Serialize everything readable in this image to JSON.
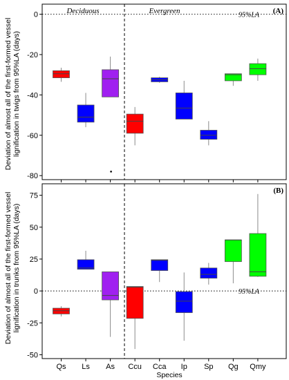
{
  "chart_data": [
    {
      "type": "box",
      "panel_label": "(A)",
      "ylabel": "Deviation of almost all of the first-formed vessel lignification in twigs from 95%LA (days)",
      "ylim": [
        -82,
        5
      ],
      "yticks": [
        0,
        -20,
        -40,
        -60,
        -80
      ],
      "group_labels": [
        "Deciduous",
        "Evergreen"
      ],
      "reference_line": {
        "y": 0,
        "label": "95%LA"
      },
      "categories": [
        "Qs",
        "Ls",
        "As",
        "Ccu",
        "Cca",
        "Ip",
        "Sp",
        "Qg",
        "Qmy"
      ],
      "colors": [
        "#ff0000",
        "#0000ff",
        "#a020f0",
        "#ff0000",
        "#0000ff",
        "#0000ff",
        "#0000ff",
        "#00ff00",
        "#00ff00"
      ],
      "boxes": [
        {
          "whisker_low": -33.5,
          "q1": -31.5,
          "median": -29.5,
          "q3": -28,
          "whisker_high": -26.5,
          "outliers": []
        },
        {
          "whisker_low": -56,
          "q1": -53.5,
          "median": -51,
          "q3": -45,
          "whisker_high": -39,
          "outliers": []
        },
        {
          "whisker_low": -41,
          "q1": -41,
          "median": -32,
          "q3": -27.5,
          "whisker_high": -21,
          "outliers": [
            -78
          ]
        },
        {
          "whisker_low": -65,
          "q1": -59,
          "median": -53,
          "q3": -49.5,
          "whisker_high": -46,
          "outliers": []
        },
        {
          "whisker_low": -34,
          "q1": -33.5,
          "median": -32.5,
          "q3": -31.5,
          "whisker_high": -31,
          "outliers": []
        },
        {
          "whisker_low": -52,
          "q1": -52,
          "median": -46.5,
          "q3": -39,
          "whisker_high": -33,
          "outliers": []
        },
        {
          "whisker_low": -65,
          "q1": -62,
          "median": -60,
          "q3": -57.5,
          "whisker_high": -53,
          "outliers": []
        },
        {
          "whisker_low": -35.5,
          "q1": -33,
          "median": -30,
          "q3": -29.5,
          "whisker_high": -29.5,
          "outliers": []
        },
        {
          "whisker_low": -33,
          "q1": -30,
          "median": -27,
          "q3": -24.5,
          "whisker_high": -22,
          "outliers": []
        }
      ]
    },
    {
      "type": "box",
      "panel_label": "(B)",
      "ylabel": "Deviation of almost all of the first-formed vessel lignification in trunks from 95%LA (days)",
      "xlabel": "Species",
      "ylim": [
        -53,
        84
      ],
      "yticks": [
        75,
        50,
        25,
        0,
        -25,
        -50
      ],
      "reference_line": {
        "y": 0,
        "label": "95%LA"
      },
      "categories": [
        "Qs",
        "Ls",
        "As",
        "Ccu",
        "Cca",
        "Ip",
        "Sp",
        "Qg",
        "Qmy"
      ],
      "colors": [
        "#ff0000",
        "#0000ff",
        "#a020f0",
        "#ff0000",
        "#0000ff",
        "#0000ff",
        "#0000ff",
        "#00ff00",
        "#00ff00"
      ],
      "boxes": [
        {
          "whisker_low": -20,
          "q1": -18,
          "median": -15.5,
          "q3": -13.5,
          "whisker_high": -12,
          "outliers": []
        },
        {
          "whisker_low": 17,
          "q1": 17,
          "median": 18,
          "q3": 24.5,
          "whisker_high": 31.5,
          "outliers": []
        },
        {
          "whisker_low": -36,
          "q1": -7,
          "median": -3.5,
          "q3": 15,
          "whisker_high": 15,
          "outliers": []
        },
        {
          "whisker_low": -45.5,
          "q1": -21.5,
          "median": 3,
          "q3": 3.5,
          "whisker_high": 3.5,
          "outliers": []
        },
        {
          "whisker_low": 7,
          "q1": 16,
          "median": 24,
          "q3": 24.5,
          "whisker_high": 24.5,
          "outliers": []
        },
        {
          "whisker_low": -39,
          "q1": -17,
          "median": -8,
          "q3": -0.5,
          "whisker_high": 14.5,
          "outliers": []
        },
        {
          "whisker_low": 5,
          "q1": 10,
          "median": 13,
          "q3": 18,
          "whisker_high": 22,
          "outliers": []
        },
        {
          "whisker_low": 6,
          "q1": 23,
          "median": 40,
          "q3": 40,
          "whisker_high": 40,
          "outliers": []
        },
        {
          "whisker_low": 11,
          "q1": 11.5,
          "median": 15,
          "q3": 45,
          "whisker_high": 76,
          "outliers": []
        }
      ]
    }
  ]
}
